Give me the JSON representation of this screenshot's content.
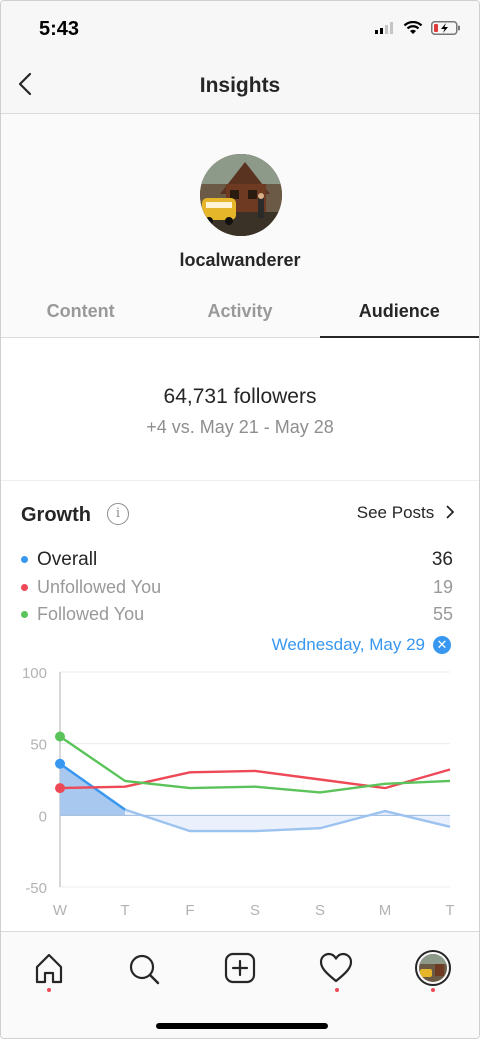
{
  "status_bar": {
    "time": "5:43"
  },
  "header": {
    "title": "Insights"
  },
  "profile": {
    "username": "localwanderer"
  },
  "tabs": [
    {
      "label": "Content",
      "active": false
    },
    {
      "label": "Activity",
      "active": false
    },
    {
      "label": "Audience",
      "active": true
    }
  ],
  "followers": {
    "count_text": "64,731 followers",
    "change_text": "+4 vs. May 21 - May 28"
  },
  "growth": {
    "title": "Growth",
    "see_posts_label": "See Posts",
    "legend": [
      {
        "label": "Overall",
        "value": "36",
        "color": "#3897f0"
      },
      {
        "label": "Unfollowed You",
        "value": "19",
        "color": "#ed4956"
      },
      {
        "label": "Followed You",
        "value": "55",
        "color": "#5ac35a"
      }
    ],
    "selected_date": "Wednesday, May 29"
  },
  "chart_data": {
    "type": "line",
    "categories": [
      "W",
      "T",
      "F",
      "S",
      "S",
      "M",
      "T"
    ],
    "ylim": [
      -50,
      100
    ],
    "yticks": [
      "100",
      "50",
      "0",
      "-50"
    ],
    "series": [
      {
        "name": "Overall",
        "color": "#3897f0",
        "values": [
          36,
          4,
          -11,
          -11,
          -9,
          3,
          -8
        ]
      },
      {
        "name": "Unfollowed You",
        "color": "#ed4956",
        "values": [
          19,
          20,
          30,
          31,
          25,
          19,
          32
        ]
      },
      {
        "name": "Followed You",
        "color": "#5ac35a",
        "values": [
          55,
          24,
          19,
          20,
          16,
          22,
          24
        ]
      }
    ]
  },
  "bottom_nav": [
    {
      "icon": "home-icon"
    },
    {
      "icon": "search-icon"
    },
    {
      "icon": "add-post-icon"
    },
    {
      "icon": "heart-icon"
    },
    {
      "icon": "profile-avatar-icon"
    }
  ]
}
